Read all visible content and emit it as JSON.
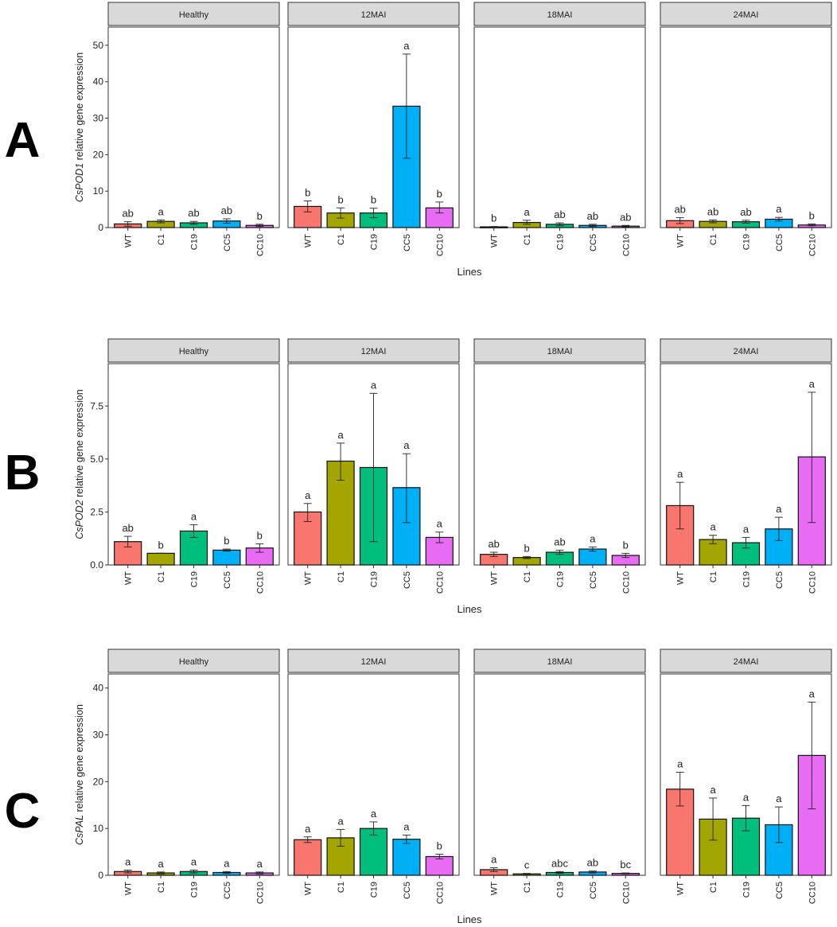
{
  "chart_data": [
    {
      "type": "bar",
      "row_label": "A",
      "ylabel_italic": "CsPOD1",
      "ylabel_rest": " relative gene expression",
      "xlabel": "Lines",
      "ylim": [
        0,
        55
      ],
      "yticks": [
        0,
        10,
        20,
        30,
        40,
        50
      ],
      "ytick_labels": [
        "0",
        "10",
        "20",
        "30",
        "40",
        "50"
      ],
      "categories": [
        "WT",
        "C1",
        "C19",
        "CC5",
        "CC10"
      ],
      "panels": [
        {
          "title": "Healthy",
          "values": [
            1.0,
            1.7,
            1.3,
            1.8,
            0.6
          ],
          "err_low": [
            0.4,
            1.3,
            0.9,
            1.2,
            0.3
          ],
          "err_high": [
            1.6,
            2.1,
            1.7,
            2.4,
            0.9
          ],
          "letters": [
            "ab",
            "a",
            "ab",
            "ab",
            "b"
          ]
        },
        {
          "title": "12MAI",
          "values": [
            5.8,
            4.0,
            4.0,
            33.3,
            5.4
          ],
          "err_low": [
            4.3,
            2.6,
            2.7,
            19.0,
            4.0
          ],
          "err_high": [
            7.3,
            5.4,
            5.3,
            47.6,
            7.0
          ],
          "letters": [
            "b",
            "b",
            "b",
            "a",
            "b"
          ]
        },
        {
          "title": "18MAI",
          "values": [
            0.2,
            1.4,
            0.9,
            0.6,
            0.4
          ],
          "err_low": [
            0.1,
            0.9,
            0.5,
            0.3,
            0.2
          ],
          "err_high": [
            0.3,
            2.0,
            1.3,
            0.9,
            0.6
          ],
          "letters": [
            "b",
            "a",
            "ab",
            "ab",
            "ab"
          ]
        },
        {
          "title": "24MAI",
          "values": [
            1.9,
            1.7,
            1.6,
            2.3,
            0.7
          ],
          "err_low": [
            1.1,
            1.3,
            1.2,
            1.8,
            0.5
          ],
          "err_high": [
            2.7,
            2.1,
            2.0,
            2.8,
            1.0
          ],
          "letters": [
            "ab",
            "ab",
            "ab",
            "a",
            "b"
          ]
        }
      ]
    },
    {
      "type": "bar",
      "row_label": "B",
      "ylabel_italic": "CsPOD2",
      "ylabel_rest": " relative gene expression",
      "xlabel": "Lines",
      "ylim": [
        0,
        9.5
      ],
      "yticks": [
        0,
        2.5,
        5,
        7.5
      ],
      "ytick_labels": [
        "0.0",
        "2.5",
        "5.0",
        "7.5"
      ],
      "categories": [
        "WT",
        "C1",
        "C19",
        "CC5",
        "CC10"
      ],
      "panels": [
        {
          "title": "Healthy",
          "values": [
            1.1,
            0.55,
            1.6,
            0.7,
            0.8
          ],
          "err_low": [
            0.85,
            0.55,
            1.3,
            0.65,
            0.6
          ],
          "err_high": [
            1.35,
            0.55,
            1.9,
            0.75,
            1.0
          ],
          "letters": [
            "ab",
            "b",
            "a",
            "b",
            "b"
          ]
        },
        {
          "title": "12MAI",
          "values": [
            2.5,
            4.9,
            4.6,
            3.65,
            1.3
          ],
          "err_low": [
            2.05,
            4.0,
            1.1,
            2.0,
            1.05
          ],
          "err_high": [
            2.9,
            5.75,
            8.1,
            5.25,
            1.55
          ],
          "letters": [
            "a",
            "a",
            "a",
            "a",
            "a"
          ]
        },
        {
          "title": "18MAI",
          "values": [
            0.5,
            0.35,
            0.6,
            0.75,
            0.45
          ],
          "err_low": [
            0.4,
            0.3,
            0.5,
            0.65,
            0.35
          ],
          "err_high": [
            0.6,
            0.4,
            0.7,
            0.85,
            0.55
          ],
          "letters": [
            "ab",
            "b",
            "ab",
            "a",
            "b"
          ]
        },
        {
          "title": "24MAI",
          "values": [
            2.8,
            1.2,
            1.05,
            1.7,
            5.1
          ],
          "err_low": [
            1.7,
            1.0,
            0.8,
            1.15,
            2.0
          ],
          "err_high": [
            3.9,
            1.4,
            1.3,
            2.25,
            8.15
          ],
          "letters": [
            "a",
            "a",
            "a",
            "a",
            "a"
          ]
        }
      ]
    },
    {
      "type": "bar",
      "row_label": "C",
      "ylabel_italic": "CsPAL",
      "ylabel_rest": " relative gene expression",
      "xlabel": "Lines",
      "ylim": [
        0,
        43
      ],
      "yticks": [
        0,
        10,
        20,
        30,
        40
      ],
      "ytick_labels": [
        "0",
        "10",
        "20",
        "30",
        "40"
      ],
      "categories": [
        "WT",
        "C1",
        "C19",
        "CC5",
        "CC10"
      ],
      "panels": [
        {
          "title": "Healthy",
          "values": [
            0.8,
            0.5,
            0.8,
            0.6,
            0.5
          ],
          "err_low": [
            0.5,
            0.3,
            0.5,
            0.4,
            0.3
          ],
          "err_high": [
            1.1,
            0.7,
            1.1,
            0.8,
            0.7
          ],
          "letters": [
            "a",
            "a",
            "a",
            "a",
            "a"
          ]
        },
        {
          "title": "12MAI",
          "values": [
            7.6,
            8.0,
            10.0,
            7.7,
            4.0
          ],
          "err_low": [
            7.0,
            6.2,
            8.6,
            6.8,
            3.5
          ],
          "err_high": [
            8.2,
            9.8,
            11.4,
            8.6,
            4.5
          ],
          "letters": [
            "a",
            "a",
            "a",
            "a",
            "b"
          ]
        },
        {
          "title": "18MAI",
          "values": [
            1.2,
            0.3,
            0.6,
            0.7,
            0.4
          ],
          "err_low": [
            0.8,
            0.2,
            0.4,
            0.5,
            0.3
          ],
          "err_high": [
            1.6,
            0.4,
            0.8,
            0.9,
            0.5
          ],
          "letters": [
            "a",
            "c",
            "abc",
            "ab",
            "bc"
          ]
        },
        {
          "title": "24MAI",
          "values": [
            18.4,
            12.0,
            12.2,
            10.8,
            25.6
          ],
          "err_low": [
            14.8,
            7.5,
            9.5,
            7.0,
            14.2
          ],
          "err_high": [
            22.0,
            16.5,
            14.9,
            14.6,
            37.0
          ],
          "letters": [
            "a",
            "a",
            "a",
            "a",
            "a"
          ]
        }
      ]
    }
  ],
  "colors": {
    "bars": [
      "#F8766D",
      "#A3A500",
      "#00BF7D",
      "#00B0F6",
      "#E76BF3"
    ],
    "strip_fill": "#D9D9D9",
    "panel_border": "#333333",
    "text": "#222222"
  }
}
